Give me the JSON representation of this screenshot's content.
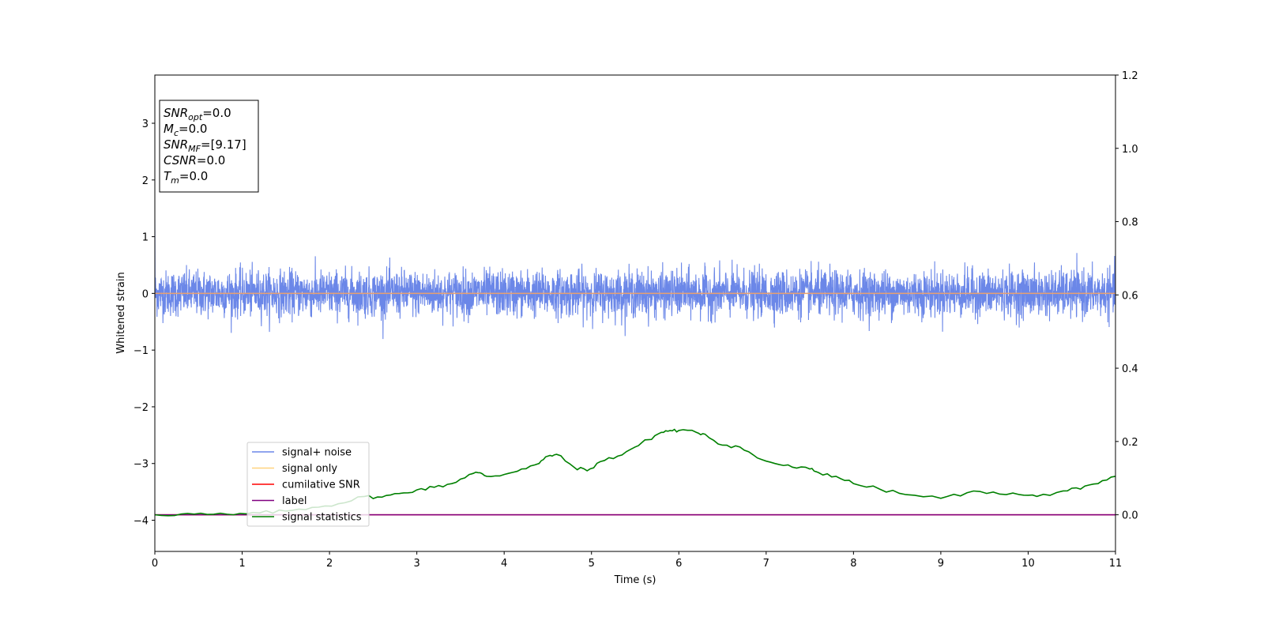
{
  "chart_data": {
    "type": "line",
    "xlabel": "Time (s)",
    "ylabel": "Whitened strain",
    "xlim": [
      0,
      11
    ],
    "ylim": [
      -4.55,
      3.85
    ],
    "y2lim": [
      -0.1,
      1.2
    ],
    "x_ticks": [
      "0",
      "1",
      "2",
      "3",
      "4",
      "5",
      "6",
      "7",
      "8",
      "9",
      "10",
      "11"
    ],
    "y_ticks": [
      "3",
      "2",
      "1",
      "0",
      "−1",
      "−2",
      "−3",
      "−4"
    ],
    "y2_ticks": [
      "1.2",
      "1.0",
      "0.8",
      "0.6",
      "0.4",
      "0.2",
      "0.0"
    ],
    "legend_position": "lower-left",
    "grid": false,
    "annotations": [
      {
        "var": "SNR",
        "sub": "opt",
        "value": "=0.0"
      },
      {
        "var": "M",
        "sub": "c",
        "value": "=0.0"
      },
      {
        "var": "SNR",
        "sub": "MF",
        "value": "=[9.17]"
      },
      {
        "var": "CSNR",
        "sub": "",
        "value": "=0.0"
      },
      {
        "var": "T",
        "sub": "m",
        "value": "=0.0"
      }
    ],
    "series": [
      {
        "name": "signal+ noise",
        "color": "#6b87e8",
        "axis": "left",
        "noise_rms": 0.2,
        "noise_range": [
          -1.07,
          1.03
        ],
        "description_values": "whitened noise around 0"
      },
      {
        "name": "signal only",
        "color": "#ffd27f",
        "axis": "left",
        "x": [
          0,
          11
        ],
        "y": [
          0,
          0
        ]
      },
      {
        "name": "cumilative SNR",
        "color": "#ff0000",
        "axis": "right",
        "x": [
          0,
          11
        ],
        "y": [
          0,
          0
        ]
      },
      {
        "name": "label",
        "color": "#800080",
        "axis": "right",
        "x": [
          0,
          11
        ],
        "y": [
          0,
          0
        ]
      },
      {
        "name": "signal statistics",
        "color": "#008000",
        "axis": "right",
        "x": [
          0,
          0.3,
          0.6,
          0.9,
          1.2,
          1.5,
          1.8,
          2.1,
          2.4,
          2.6,
          2.8,
          3.0,
          3.2,
          3.4,
          3.6,
          3.7,
          3.8,
          4.0,
          4.2,
          4.4,
          4.5,
          4.6,
          4.8,
          4.95,
          5.1,
          5.3,
          5.5,
          5.65,
          5.8,
          5.9,
          6.0,
          6.2,
          6.3,
          6.5,
          6.7,
          6.9,
          7.1,
          7.3,
          7.5,
          7.6,
          7.8,
          8.0,
          8.3,
          8.6,
          9.0,
          9.3,
          9.6,
          9.9,
          10.1,
          10.4,
          10.6,
          10.8,
          11.0
        ],
        "y": [
          0.0,
          0.002,
          0.001,
          0.0,
          0.005,
          0.01,
          0.02,
          0.03,
          0.05,
          0.048,
          0.058,
          0.068,
          0.075,
          0.085,
          0.11,
          0.115,
          0.105,
          0.11,
          0.125,
          0.14,
          0.16,
          0.165,
          0.13,
          0.12,
          0.145,
          0.16,
          0.185,
          0.205,
          0.225,
          0.23,
          0.23,
          0.225,
          0.22,
          0.19,
          0.185,
          0.155,
          0.14,
          0.13,
          0.125,
          0.115,
          0.105,
          0.085,
          0.07,
          0.055,
          0.045,
          0.06,
          0.062,
          0.055,
          0.05,
          0.065,
          0.07,
          0.085,
          0.105
        ]
      }
    ]
  }
}
